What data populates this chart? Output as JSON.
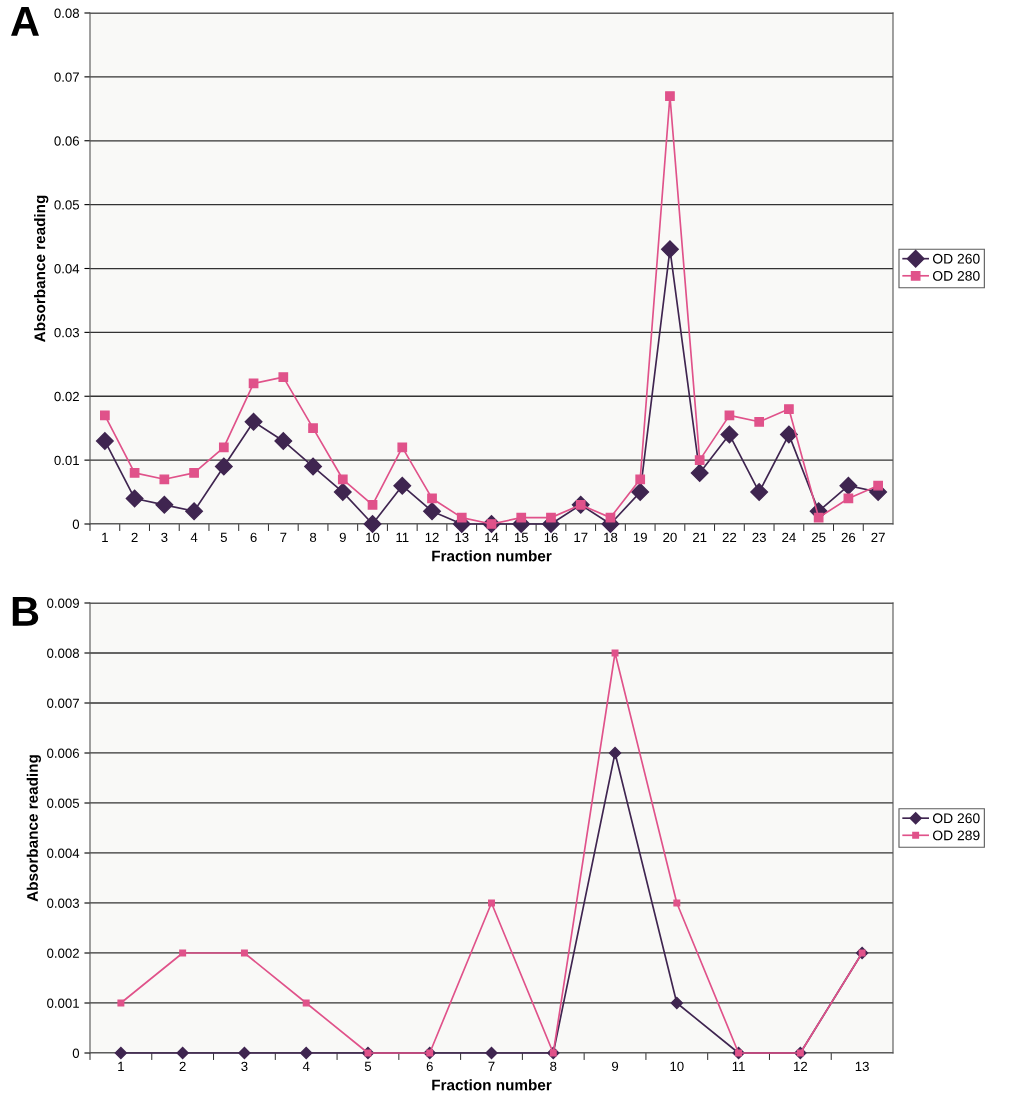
{
  "chart_data": [
    {
      "type": "line",
      "title": "A",
      "xlabel": "Fraction number",
      "ylabel": "Absorbance reading",
      "categories": [
        "1",
        "2",
        "3",
        "4",
        "5",
        "6",
        "7",
        "8",
        "9",
        "10",
        "11",
        "12",
        "13",
        "14",
        "15",
        "16",
        "17",
        "18",
        "19",
        "20",
        "21",
        "22",
        "23",
        "24",
        "25",
        "26",
        "27"
      ],
      "series": [
        {
          "name": "OD 260",
          "color": "#3f2550",
          "marker": "diamond",
          "values": [
            0.013,
            0.004,
            0.003,
            0.002,
            0.009,
            0.016,
            0.013,
            0.009,
            0.005,
            0,
            0.006,
            0.002,
            0,
            0,
            0,
            0,
            0.003,
            0,
            0.005,
            0.043,
            0.008,
            0.014,
            0.005,
            0.014,
            0.002,
            0.006,
            0.005
          ]
        },
        {
          "name": "OD 280",
          "color": "#e0528a",
          "marker": "square",
          "values": [
            0.017,
            0.008,
            0.007,
            0.008,
            0.012,
            0.022,
            0.023,
            0.015,
            0.007,
            0.003,
            0.012,
            0.004,
            0.001,
            0,
            0.001,
            0.001,
            0.003,
            0.001,
            0.007,
            0.067,
            0.01,
            0.017,
            0.016,
            0.018,
            0.001,
            0.004,
            0.006
          ]
        }
      ],
      "ylim": [
        0,
        0.08
      ],
      "yticks": [
        0,
        0.01,
        0.02,
        0.03,
        0.04,
        0.05,
        0.06,
        0.07,
        0.08
      ],
      "grid": "y",
      "legend": "right",
      "line_style": "solid"
    },
    {
      "type": "line",
      "title": "B",
      "xlabel": "Fraction number",
      "ylabel": "Absorbance reading",
      "categories": [
        "1",
        "2",
        "3",
        "4",
        "5",
        "6",
        "7",
        "8",
        "9",
        "10",
        "11",
        "12",
        "13"
      ],
      "series": [
        {
          "name": "OD 260",
          "color": "#3f2550",
          "marker": "diamond",
          "values": [
            0,
            0,
            0,
            0,
            0,
            0,
            0,
            0,
            0.006,
            0.001,
            0,
            0,
            0.002
          ]
        },
        {
          "name": "OD 289",
          "color": "#e0528a",
          "marker": "square",
          "values": [
            0.001,
            0.002,
            0.002,
            0.001,
            0,
            0,
            0.003,
            0,
            0.008,
            0.003,
            0,
            0,
            0.002
          ]
        }
      ],
      "ylim": [
        0,
        0.009
      ],
      "yticks": [
        0,
        0.001,
        0.002,
        0.003,
        0.004,
        0.005,
        0.006,
        0.007,
        0.008,
        0.009
      ],
      "grid": "y",
      "legend": "right",
      "line_style": "solid"
    }
  ]
}
